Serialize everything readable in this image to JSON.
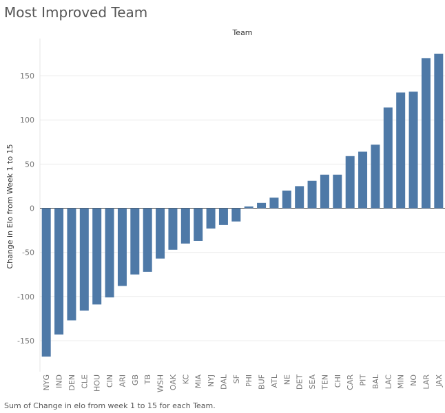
{
  "title": "Most Improved Team",
  "caption": "Sum of Change in elo from week 1 to 15 for each Team.",
  "chart_data": {
    "type": "bar",
    "column_header": "Team",
    "xlabel": "",
    "ylabel": "Change in Elo from Week 1 to 15",
    "ylim": [
      -175,
      180
    ],
    "yticks": [
      -150,
      -100,
      -50,
      0,
      50,
      100,
      150
    ],
    "grid": true,
    "bar_color": "#4e79a7",
    "categories": [
      "NYG",
      "IND",
      "DEN",
      "CLE",
      "HOU",
      "CIN",
      "ARI",
      "GB",
      "TB",
      "WSH",
      "OAK",
      "KC",
      "MIA",
      "NYJ",
      "DAL",
      "SF",
      "PHI",
      "BUF",
      "ATL",
      "NE",
      "DET",
      "SEA",
      "TEN",
      "CHI",
      "CAR",
      "PIT",
      "BAL",
      "LAC",
      "MIN",
      "NO",
      "LAR",
      "JAX"
    ],
    "values": [
      -168,
      -143,
      -127,
      -116,
      -109,
      -101,
      -88,
      -75,
      -72,
      -57,
      -47,
      -40,
      -37,
      -23,
      -19,
      -15,
      2,
      6,
      12,
      20,
      25,
      31,
      38,
      38,
      59,
      64,
      72,
      114,
      131,
      132,
      170,
      175
    ]
  }
}
